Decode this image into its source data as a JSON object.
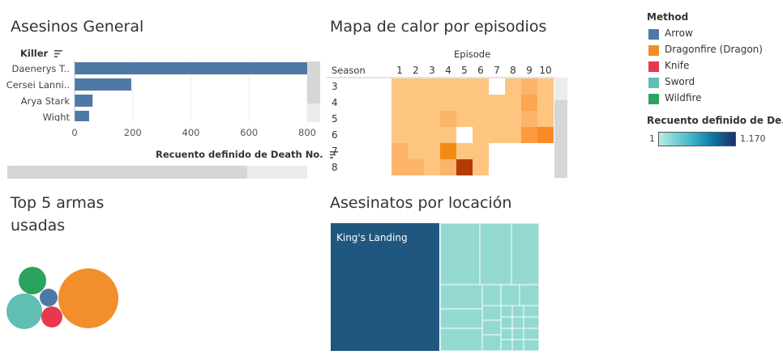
{
  "killers": {
    "title": "Asesinos General",
    "header": "Killer",
    "axis_title": "Recuento definido de Death No.",
    "sort_icon": "sort-descending-icon",
    "chart_data": {
      "type": "bar",
      "orientation": "horizontal",
      "categories": [
        "Daenerys T..",
        "Cersei Lanni..",
        "Arya Stark",
        "Wight"
      ],
      "values": [
        800,
        195,
        62,
        50
      ],
      "xlim": [
        0,
        800
      ],
      "xticks": [
        "0",
        "200",
        "400",
        "600",
        "800"
      ],
      "color": "#4e79a7",
      "grid": true
    }
  },
  "heatmap": {
    "title": "Mapa de calor por episodios",
    "col_header": "Episode",
    "row_header": "Season",
    "chart_data": {
      "type": "heatmap",
      "x": [
        "1",
        "2",
        "3",
        "4",
        "5",
        "6",
        "7",
        "8",
        "9",
        "10"
      ],
      "y": [
        "3",
        "4",
        "5",
        "6",
        "7",
        "8"
      ],
      "values": [
        [
          1,
          1,
          1,
          1,
          1,
          1,
          null,
          1,
          2,
          1
        ],
        [
          1,
          1,
          1,
          1,
          1,
          1,
          1,
          1,
          3,
          1
        ],
        [
          1,
          1,
          1,
          2,
          1,
          1,
          1,
          1,
          2,
          1
        ],
        [
          1,
          1,
          1,
          1,
          null,
          1,
          1,
          1,
          4,
          5
        ],
        [
          2,
          1,
          1,
          6,
          1,
          1,
          null,
          null,
          null,
          null
        ],
        [
          2,
          2,
          1,
          2,
          12,
          1,
          null,
          null,
          null,
          null
        ]
      ],
      "colors": {
        "1": "#fdc57f",
        "2": "#fcb46a",
        "3": "#fca651",
        "4": "#fb9a3e",
        "5": "#f88a27",
        "6": "#f08b15",
        "12": "#b43b04"
      }
    }
  },
  "weapons": {
    "title_line1": "Top 5 armas",
    "title_line2": "usadas",
    "chart_data": {
      "type": "bubble",
      "items": [
        {
          "name": "Dragonfire (Dragon)",
          "size": 5,
          "color": "#f28e2b"
        },
        {
          "name": "Sword",
          "size": 3,
          "color": "#5fbfb3"
        },
        {
          "name": "Wildfire",
          "size": 2.5,
          "color": "#2ca25f"
        },
        {
          "name": "Knife",
          "size": 2,
          "color": "#e8384f"
        },
        {
          "name": "Arrow",
          "size": 1.5,
          "color": "#4e79a7"
        }
      ]
    }
  },
  "locations": {
    "title": "Asesinatos por locación",
    "chart_data": {
      "type": "treemap",
      "main_label": "King's Landing",
      "main_color": "#20577f",
      "other_color": "#99dcd5"
    }
  },
  "legend": {
    "method_title": "Method",
    "items": [
      {
        "label": "Arrow",
        "color": "#4e79a7"
      },
      {
        "label": "Dragonfire (Dragon)",
        "color": "#f28e2b"
      },
      {
        "label": "Knife",
        "color": "#e8384f"
      },
      {
        "label": "Sword",
        "color": "#5fbfb3"
      },
      {
        "label": "Wildfire",
        "color": "#2ca25f"
      }
    ],
    "count_title": "Recuento definido de De...",
    "range_min": "1",
    "range_max": "1.170"
  }
}
